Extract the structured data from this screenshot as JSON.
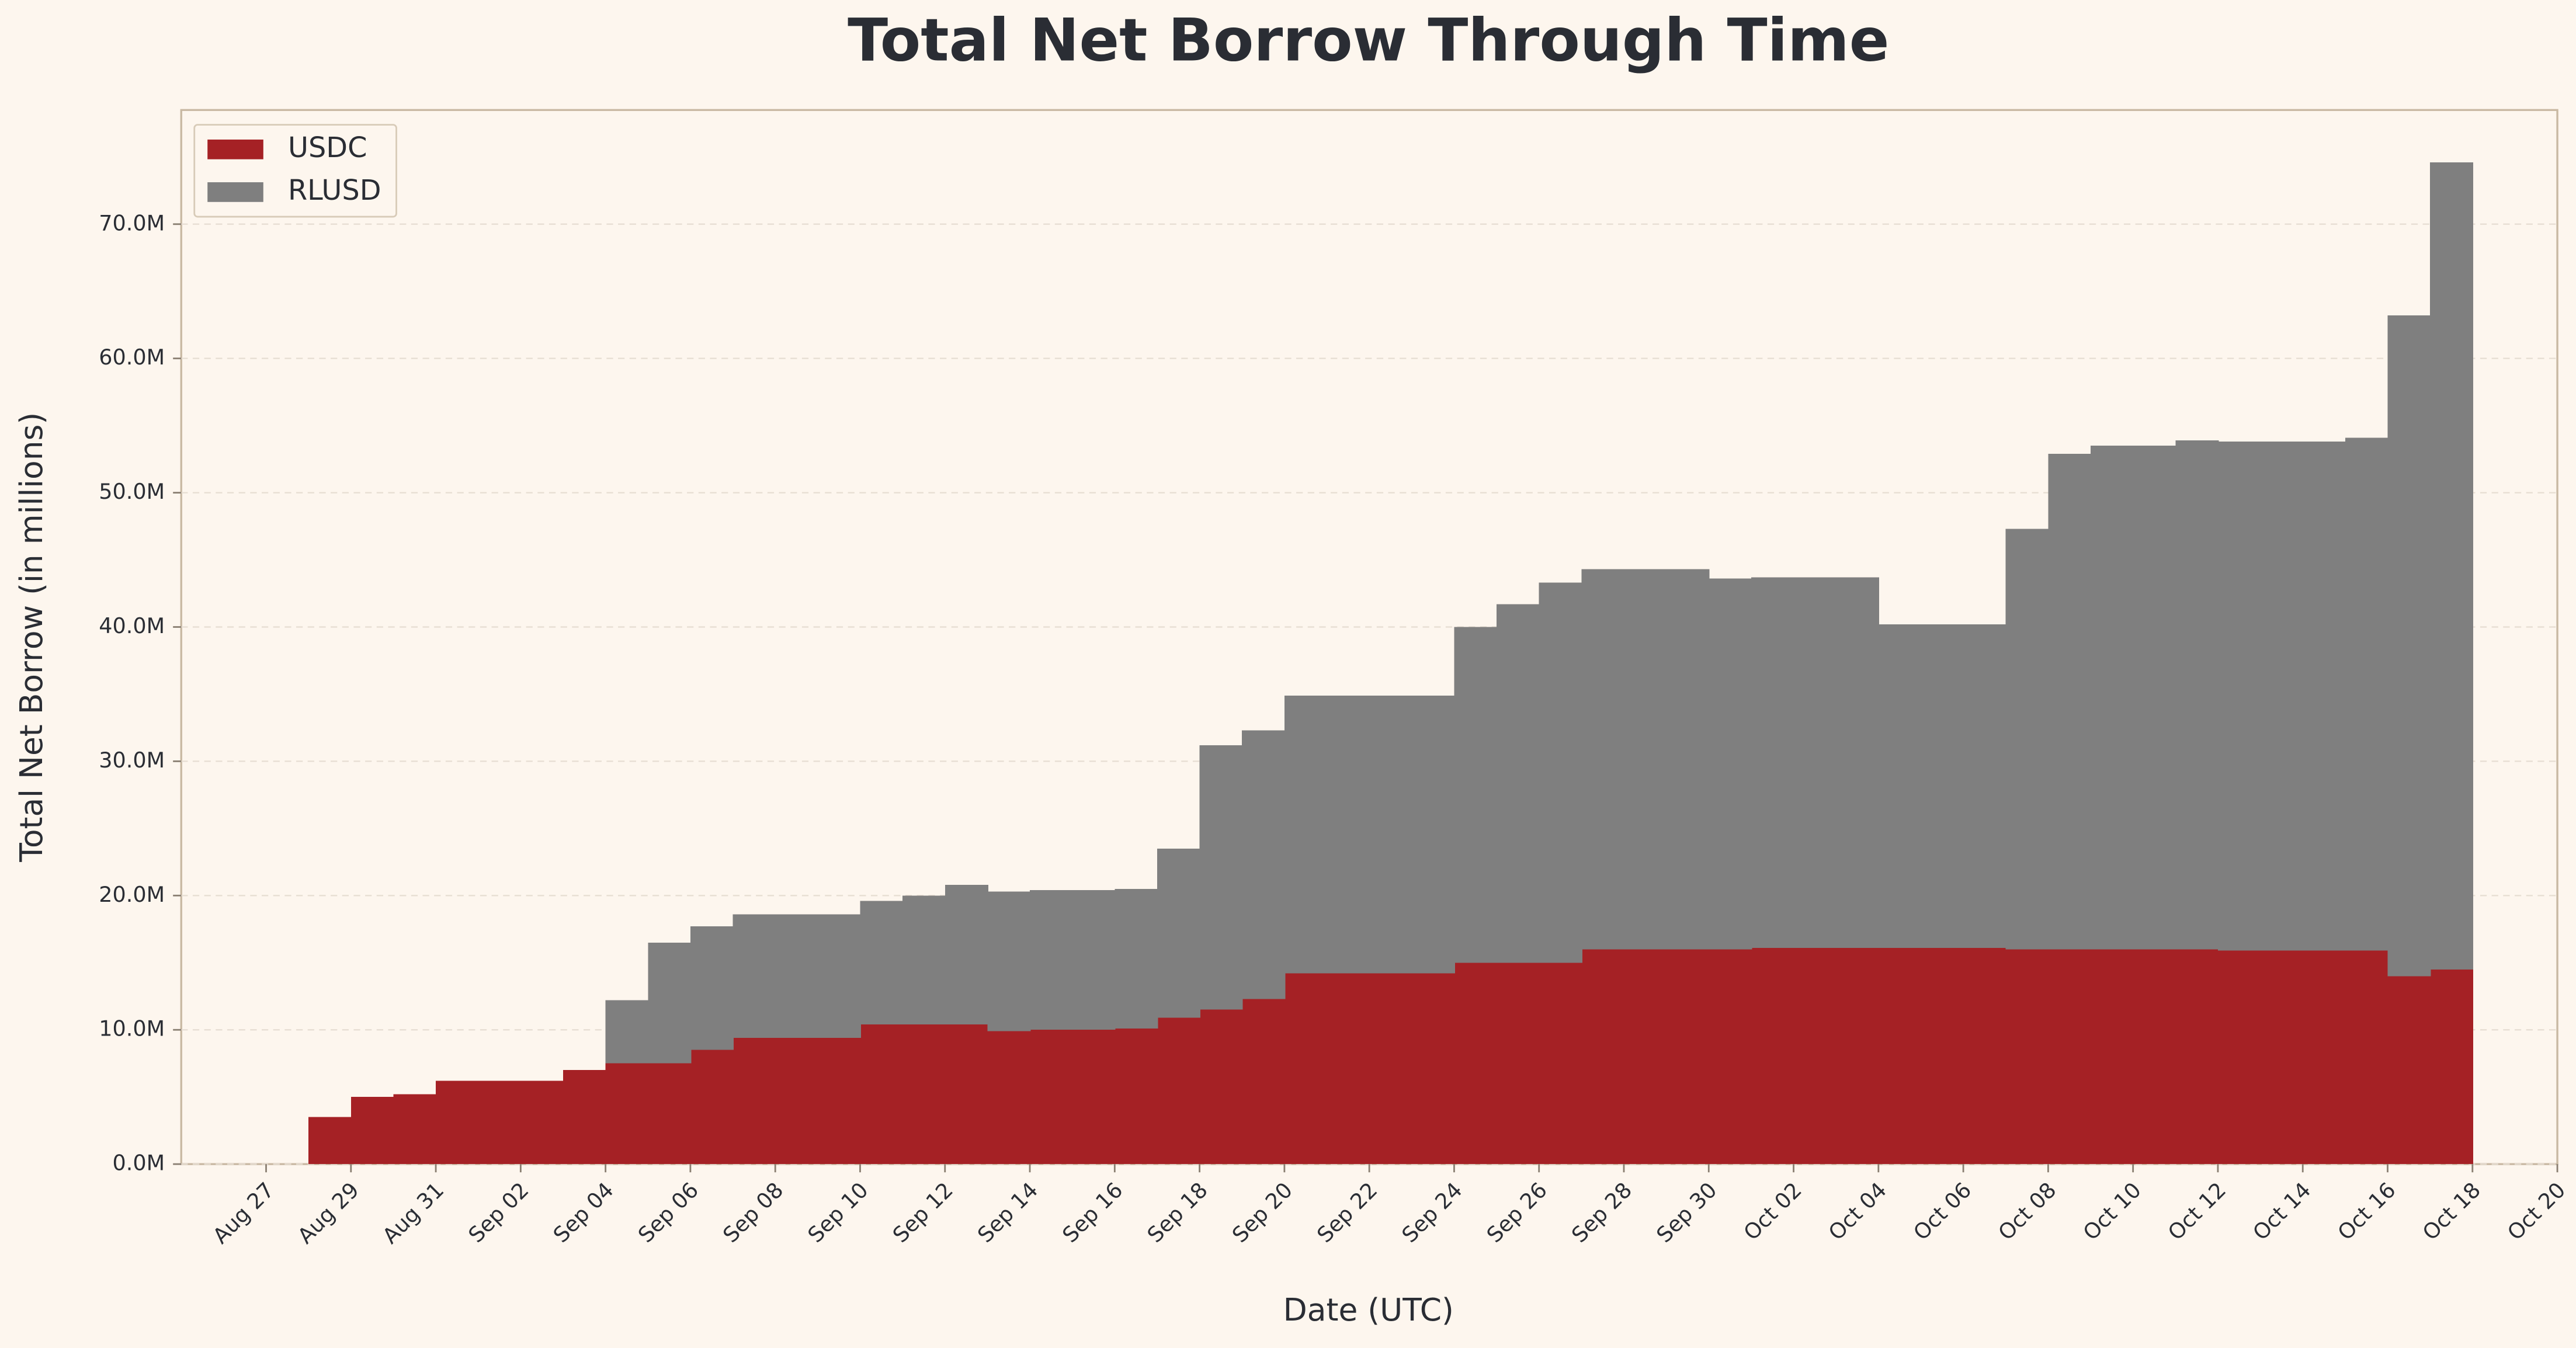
{
  "chart_data": {
    "type": "stacked_area",
    "title": "Total Net Borrow Through Time",
    "x_label": "Date (UTC)",
    "y_label": "Total Net Borrow (in millions)",
    "x": [
      "Aug 28",
      "Aug 29",
      "Aug 30",
      "Aug 31",
      "Sep 01",
      "Sep 02",
      "Sep 03",
      "Sep 04",
      "Sep 05",
      "Sep 06",
      "Sep 07",
      "Sep 08",
      "Sep 09",
      "Sep 10",
      "Sep 11",
      "Sep 12",
      "Sep 13",
      "Sep 14",
      "Sep 15",
      "Sep 16",
      "Sep 17",
      "Sep 18",
      "Sep 19",
      "Sep 20",
      "Sep 21",
      "Sep 22",
      "Sep 23",
      "Sep 24",
      "Sep 25",
      "Sep 26",
      "Sep 27",
      "Sep 28",
      "Sep 29",
      "Sep 30",
      "Oct 01",
      "Oct 02",
      "Oct 03",
      "Oct 04",
      "Oct 05",
      "Oct 06",
      "Oct 07",
      "Oct 08",
      "Oct 09",
      "Oct 10",
      "Oct 11",
      "Oct 12",
      "Oct 13",
      "Oct 14",
      "Oct 15",
      "Oct 16",
      "Oct 17"
    ],
    "series": [
      {
        "name": "USDC",
        "color": "#a52125",
        "values": [
          3.5,
          5.0,
          5.2,
          6.2,
          6.2,
          6.2,
          7.0,
          7.5,
          7.5,
          8.5,
          9.4,
          9.4,
          9.4,
          10.4,
          10.4,
          10.4,
          9.9,
          10.0,
          10.0,
          10.1,
          10.9,
          11.5,
          12.3,
          14.2,
          14.2,
          14.2,
          14.2,
          15.0,
          15.0,
          15.0,
          16.0,
          16.0,
          16.0,
          16.0,
          16.1,
          16.1,
          16.1,
          16.1,
          16.1,
          16.1,
          16.0,
          16.0,
          16.0,
          16.0,
          16.0,
          15.9,
          15.9,
          15.9,
          15.9,
          14.0,
          14.5
        ]
      },
      {
        "name": "RLUSD",
        "color": "#7f7f7f",
        "values": [
          0,
          0,
          0,
          0,
          0,
          0,
          0,
          4.7,
          9.0,
          9.2,
          9.2,
          9.2,
          9.2,
          9.2,
          9.6,
          10.4,
          10.4,
          10.4,
          10.4,
          10.4,
          12.6,
          19.7,
          20.0,
          20.7,
          20.7,
          20.7,
          20.7,
          25.0,
          26.7,
          28.3,
          28.3,
          28.3,
          28.3,
          27.6,
          27.6,
          27.6,
          27.6,
          24.1,
          24.1,
          24.1,
          31.3,
          36.9,
          37.5,
          37.5,
          37.9,
          37.9,
          37.9,
          37.9,
          38.2,
          49.2,
          60.1
        ]
      }
    ],
    "xlim": [
      "Aug 25",
      "Oct 20"
    ],
    "xticks": [
      "Aug 27",
      "Aug 29",
      "Aug 31",
      "Sep 02",
      "Sep 04",
      "Sep 06",
      "Sep 08",
      "Sep 10",
      "Sep 12",
      "Sep 14",
      "Sep 16",
      "Sep 18",
      "Sep 20",
      "Sep 22",
      "Sep 24",
      "Sep 26",
      "Sep 28",
      "Sep 30",
      "Oct 02",
      "Oct 04",
      "Oct 06",
      "Oct 08",
      "Oct 10",
      "Oct 12",
      "Oct 14",
      "Oct 16",
      "Oct 18",
      "Oct 20"
    ],
    "ylim": [
      0,
      78.5
    ],
    "yticks": [
      {
        "value": 0,
        "label": "0.0M"
      },
      {
        "value": 10,
        "label": "10.0M"
      },
      {
        "value": 20,
        "label": "20.0M"
      },
      {
        "value": 30,
        "label": "30.0M"
      },
      {
        "value": 40,
        "label": "40.0M"
      },
      {
        "value": 50,
        "label": "50.0M"
      },
      {
        "value": 60,
        "label": "60.0M"
      },
      {
        "value": 70,
        "label": "70.0M"
      }
    ],
    "grid": true,
    "legend": "upper-left"
  }
}
